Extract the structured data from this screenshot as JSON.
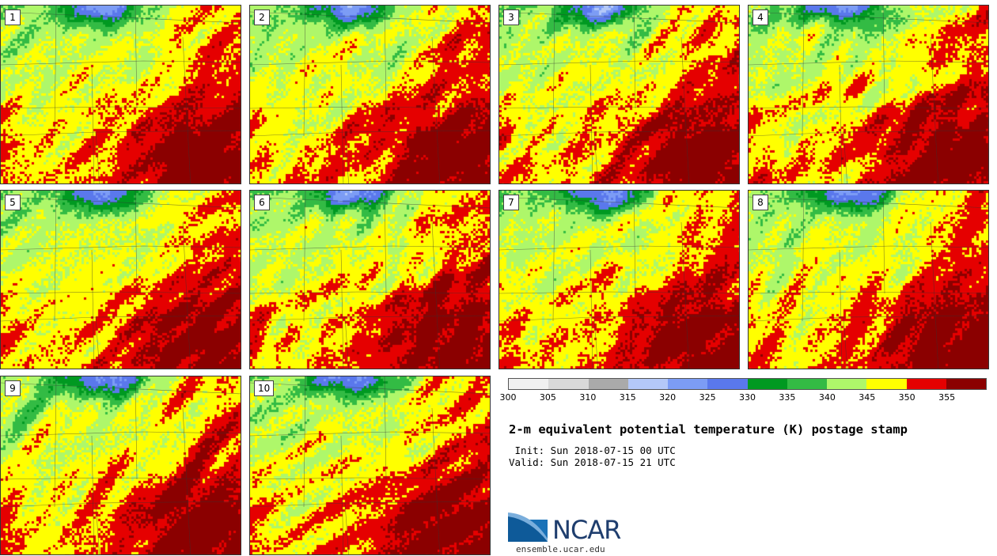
{
  "title": "2-m equivalent potential temperature (K) postage stamp",
  "init_line": " Init: Sun 2018-07-15 00 UTC",
  "valid_line": "Valid: Sun 2018-07-15 21 UTC",
  "site": "ensemble.ucar.edu",
  "logo_text": "NCAR",
  "members": [
    "1",
    "2",
    "3",
    "4",
    "5",
    "6",
    "7",
    "8",
    "9",
    "10"
  ],
  "colorbar": {
    "ticks": [
      "300",
      "305",
      "310",
      "315",
      "320",
      "325",
      "330",
      "335",
      "340",
      "345",
      "350",
      "355"
    ],
    "colors": [
      "#f0f0f0",
      "#d9d9d9",
      "#aaaaaa",
      "#b4c8f8",
      "#7c9cf5",
      "#5a78ec",
      "#009921",
      "#33bb44",
      "#aef76a",
      "#ffff00",
      "#e50000",
      "#8b0000"
    ]
  }
}
